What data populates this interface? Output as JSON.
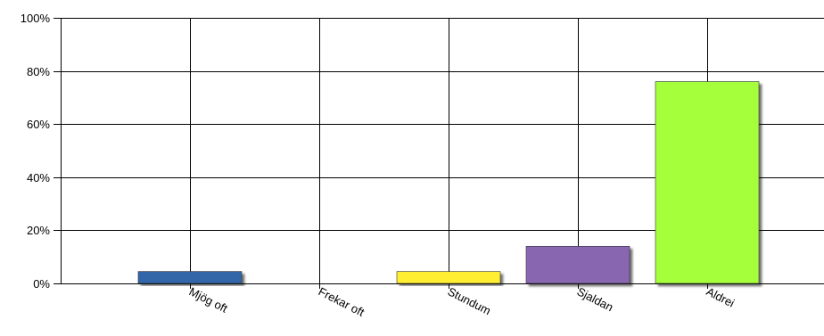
{
  "chart_data": {
    "type": "bar",
    "categories": [
      "Mjög oft",
      "Frekar oft",
      "Stundum",
      "Sjaldan",
      "Aldrei"
    ],
    "values": [
      4.5,
      0,
      4.5,
      14,
      76
    ],
    "colors": [
      "#3366a8",
      "#e06060",
      "#ffee33",
      "#8866b0",
      "#a6ff3a"
    ],
    "ylim": [
      0,
      100
    ],
    "yticks": [
      0,
      20,
      40,
      60,
      80,
      100
    ],
    "ytick_labels": [
      "0%",
      "20%",
      "40%",
      "60%",
      "80%",
      "100%"
    ],
    "grid": true,
    "legend": "none"
  }
}
